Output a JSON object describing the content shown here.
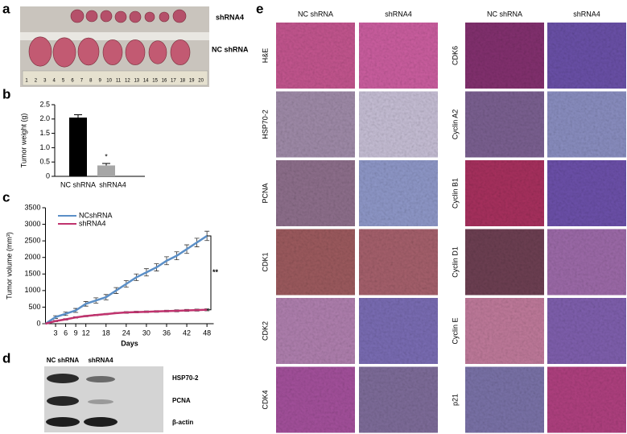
{
  "panels": {
    "a": {
      "letter": "a",
      "labels": [
        "shRNA4",
        "NC shRNA"
      ],
      "ruler_ticks": [
        1,
        2,
        3,
        4,
        5,
        6,
        7,
        8,
        9,
        10,
        11,
        12,
        13,
        14,
        15,
        16,
        17,
        18,
        19,
        20
      ]
    },
    "b": {
      "letter": "b"
    },
    "c": {
      "letter": "c"
    },
    "d": {
      "letter": "d",
      "columns": [
        "NC shRNA",
        "shRNA4"
      ],
      "rows": [
        "HSP70-2",
        "PCNA",
        "β-actin"
      ]
    },
    "e": {
      "letter": "e",
      "left": {
        "headers": [
          "NC shRNA",
          "shRNA4"
        ],
        "rows": [
          "H&E",
          "HSP70-2",
          "PCNA",
          "CDK1",
          "CDK2",
          "CDK4"
        ]
      },
      "right": {
        "headers": [
          "NC shRNA",
          "shRNA4"
        ],
        "rows": [
          "CDK6",
          "Cyclin A2",
          "Cyclin B1",
          "Cyclin D1",
          "Cyclin E",
          "p21"
        ]
      }
    }
  },
  "chart_data": [
    {
      "type": "bar",
      "y_label": "Tumor weight (g)",
      "categories": [
        "NC shRNA",
        "shRNA4"
      ],
      "values": [
        2.05,
        0.38
      ],
      "errors": [
        0.1,
        0.07
      ],
      "colors": [
        "#000000",
        "#a6a6a6"
      ],
      "ylim": [
        0,
        2.5
      ],
      "yticks": [
        0,
        0.5,
        {
          "value": 1,
          "label": "1.0"
        },
        1.5,
        {
          "value": 2,
          "label": "2.0"
        },
        2.5
      ],
      "annotation": "*"
    },
    {
      "type": "line",
      "x_label": "Days",
      "y_label": "Tumor volume (mm³)",
      "x": [
        0,
        3,
        6,
        9,
        12,
        15,
        18,
        21,
        24,
        27,
        30,
        33,
        36,
        39,
        42,
        45,
        48
      ],
      "series": [
        {
          "name": "NCshRNA",
          "color": "#5b8fc7",
          "values": [
            0,
            200,
            300,
            400,
            600,
            700,
            800,
            1000,
            1200,
            1400,
            1550,
            1700,
            1900,
            2050,
            2250,
            2450,
            2650
          ],
          "errors": [
            0,
            40,
            50,
            60,
            70,
            80,
            80,
            90,
            100,
            100,
            110,
            110,
            120,
            120,
            130,
            130,
            140
          ]
        },
        {
          "name": "shRNA4",
          "color": "#c0336e",
          "values": [
            0,
            80,
            130,
            190,
            230,
            260,
            290,
            320,
            340,
            350,
            360,
            370,
            380,
            390,
            400,
            410,
            420
          ],
          "errors": [
            0,
            20,
            20,
            20,
            20,
            20,
            20,
            20,
            25,
            25,
            25,
            25,
            25,
            30,
            30,
            30,
            30
          ]
        }
      ],
      "xlim": [
        0,
        50
      ],
      "xticks": [
        3,
        6,
        9,
        12,
        18,
        24,
        30,
        36,
        42,
        48
      ],
      "ylim": [
        0,
        3500
      ],
      "yticks": [
        0,
        500,
        1000,
        1500,
        2000,
        2500,
        3000,
        3500
      ],
      "legend": "upper left",
      "annotation": "**"
    }
  ]
}
